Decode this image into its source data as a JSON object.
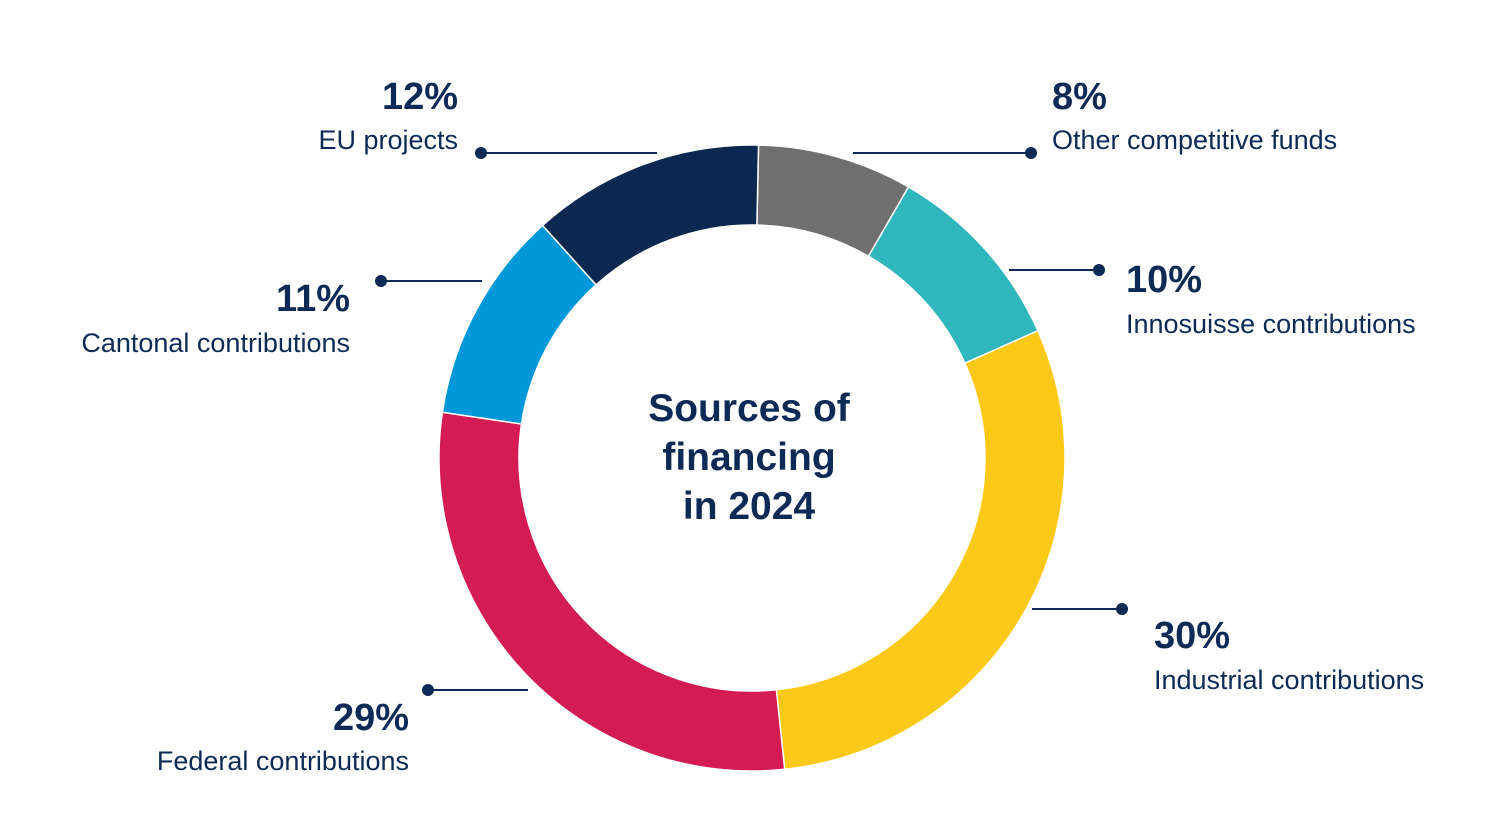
{
  "chart_data": {
    "type": "pie",
    "donut": true,
    "center_title": [
      "Sources of",
      "financing",
      "in 2024"
    ],
    "slices": [
      {
        "label": "Other competitive funds",
        "value": 8,
        "value_label": "8%",
        "color": "#6f6f6f"
      },
      {
        "label": "Innosuisse contributions",
        "value": 10,
        "value_label": "10%",
        "color": "#2fb7bd"
      },
      {
        "label": "Industrial contributions",
        "value": 30,
        "value_label": "30%",
        "color": "#fdc918"
      },
      {
        "label": "Federal contributions",
        "value": 29,
        "value_label": "29%",
        "color": "#d31c52"
      },
      {
        "label": "Cantonal contributions",
        "value": 11,
        "value_label": "11%",
        "color": "#0098d8"
      },
      {
        "label": "EU projects",
        "value": 12,
        "value_label": "12%",
        "color": "#0a2850"
      }
    ],
    "legend": "none",
    "text_color": "#0b2a55"
  }
}
